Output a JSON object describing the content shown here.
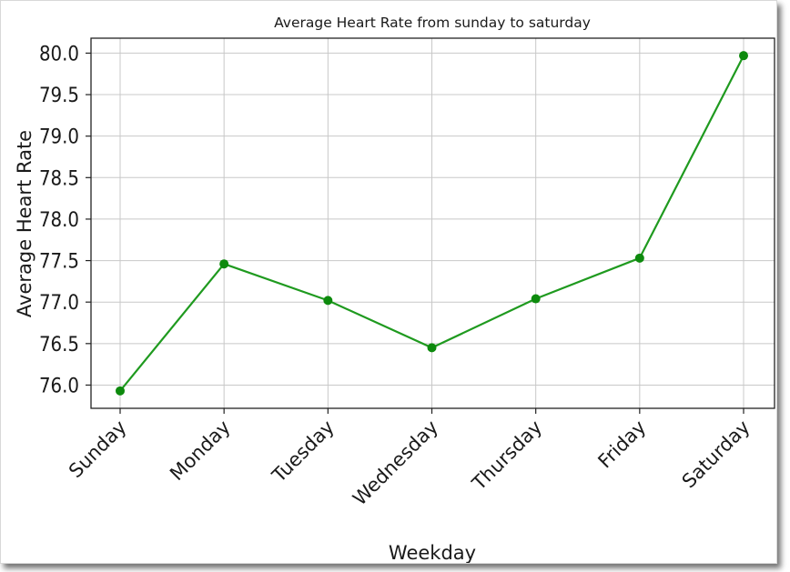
{
  "chart_data": {
    "type": "line",
    "title": "Average Heart Rate from sunday to saturday",
    "xlabel": "Weekday",
    "ylabel": "Average Heart Rate",
    "categories": [
      "Sunday",
      "Monday",
      "Tuesday",
      "Wednesday",
      "Thursday",
      "Friday",
      "Saturday"
    ],
    "series": [
      {
        "values": [
          75.93,
          77.46,
          77.02,
          76.45,
          77.04,
          77.53,
          79.97
        ],
        "color": "#1f9a1f",
        "marker": "circle"
      }
    ],
    "ylim": [
      75.72,
      80.18
    ],
    "yticks": [
      76.0,
      76.5,
      77.0,
      77.5,
      78.0,
      78.5,
      79.0,
      79.5,
      80.0
    ],
    "ytick_labels": [
      "76.0",
      "76.5",
      "77.0",
      "77.5",
      "78.0",
      "78.5",
      "79.0",
      "79.5",
      "80.0"
    ],
    "grid": true,
    "xtick_rotation": -45
  }
}
